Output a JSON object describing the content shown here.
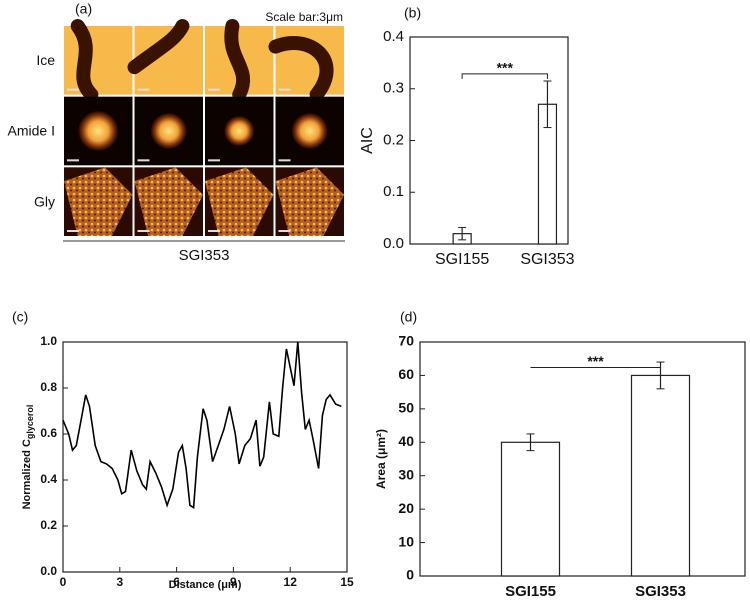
{
  "chart_data": [
    {
      "type": "image-grid",
      "panel_label": "(a)",
      "annotation": "Scale bar:3μm",
      "row_labels": [
        "Ice",
        "Amide I",
        "Gly"
      ],
      "xlabel": "SGI353"
    },
    {
      "type": "bar",
      "panel_label": "(b)",
      "ylabel": "AIC",
      "annotation": "***",
      "categories": [
        "SGI155",
        "SGI353"
      ],
      "values": [
        0.02,
        0.27
      ],
      "errors": [
        0.012,
        0.045
      ],
      "color": "#ffffff",
      "ylim": [
        0,
        0.4
      ],
      "yticks": [
        {
          "value": 0,
          "label": "0.0"
        },
        0.1,
        0.2,
        0.3,
        0.4
      ]
    },
    {
      "type": "line",
      "panel_label": "(c)",
      "ylabel": "Normalized C",
      "ylabel_sub": "glycerol",
      "xlabel": "Distance (μm)",
      "color": "#000000",
      "x": [
        0,
        0.3,
        0.5,
        0.7,
        1.0,
        1.2,
        1.4,
        1.7,
        2.0,
        2.3,
        2.6,
        2.9,
        3.1,
        3.3,
        3.6,
        3.9,
        4.2,
        4.4,
        4.6,
        4.9,
        5.2,
        5.5,
        5.8,
        6.1,
        6.3,
        6.5,
        6.7,
        6.9,
        7.1,
        7.4,
        7.6,
        7.9,
        8.2,
        8.5,
        8.8,
        9.1,
        9.3,
        9.6,
        9.9,
        10.2,
        10.4,
        10.6,
        10.9,
        11.1,
        11.4,
        11.6,
        11.8,
        12.0,
        12.2,
        12.4,
        12.6,
        12.8,
        13.0,
        13.2,
        13.5,
        13.7,
        13.9,
        14.1,
        14.4,
        14.7
      ],
      "values": [
        0.66,
        0.6,
        0.53,
        0.55,
        0.68,
        0.77,
        0.72,
        0.55,
        0.48,
        0.47,
        0.45,
        0.4,
        0.34,
        0.35,
        0.53,
        0.44,
        0.38,
        0.36,
        0.48,
        0.43,
        0.37,
        0.29,
        0.36,
        0.52,
        0.55,
        0.45,
        0.29,
        0.28,
        0.5,
        0.71,
        0.66,
        0.48,
        0.55,
        0.62,
        0.72,
        0.6,
        0.47,
        0.55,
        0.58,
        0.66,
        0.46,
        0.5,
        0.74,
        0.6,
        0.59,
        0.8,
        0.97,
        0.89,
        0.81,
        1.0,
        0.78,
        0.62,
        0.66,
        0.58,
        0.45,
        0.68,
        0.75,
        0.77,
        0.73,
        0.72
      ],
      "xlim": [
        0,
        15
      ],
      "xticks": [
        0,
        3,
        6,
        9,
        12,
        15
      ],
      "ylim": [
        0,
        1
      ],
      "yticks": [
        {
          "value": 0,
          "label": "0.0"
        },
        0.2,
        0.4,
        0.6,
        0.8,
        {
          "value": 1,
          "label": "1.0"
        }
      ]
    },
    {
      "type": "bar",
      "panel_label": "(d)",
      "ylabel": "Area (μm²)",
      "annotation": "***",
      "categories": [
        "SGI155",
        "SGI353"
      ],
      "values": [
        40,
        60
      ],
      "errors": [
        2.5,
        4
      ],
      "color": "#ffffff",
      "ylim": [
        0,
        70
      ],
      "yticks": [
        0,
        10,
        20,
        30,
        40,
        50,
        60,
        70
      ]
    }
  ]
}
